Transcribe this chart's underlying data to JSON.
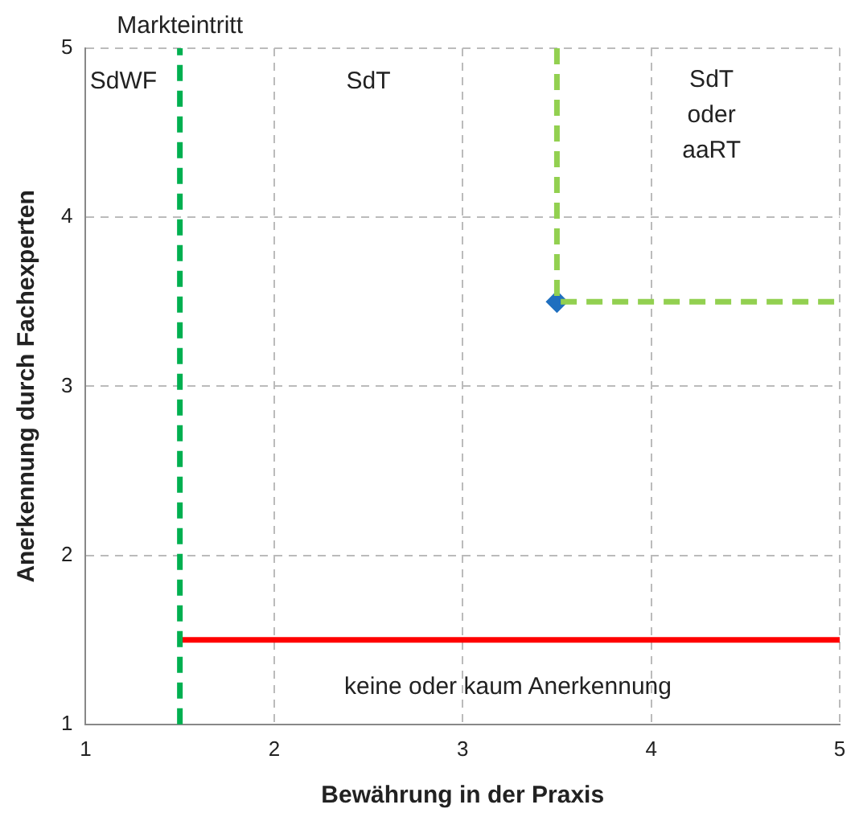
{
  "chart_data": {
    "type": "scatter",
    "xlabel": "Bewährung in der Praxis",
    "ylabel": "Anerkennung durch Fachexperten",
    "xlim": [
      1,
      5
    ],
    "xticks": [
      1,
      2,
      3,
      4,
      5
    ],
    "ylim": [
      1,
      5
    ],
    "yticks": [
      1,
      2,
      3,
      4,
      5
    ],
    "grid": true,
    "legend": false,
    "series": [
      {
        "type": "line",
        "color": "#00b050",
        "x": [
          1.5,
          1.5
        ],
        "values": [
          1,
          5
        ],
        "line_style": "dashed",
        "marker": "none"
      },
      {
        "type": "line",
        "color": "#92d050",
        "x": [
          3.5,
          3.5,
          5
        ],
        "values": [
          5,
          3.5,
          3.5
        ],
        "line_style": "dashed",
        "marker": "none"
      },
      {
        "type": "line",
        "color": "#ff0000",
        "x": [
          1.5,
          5
        ],
        "values": [
          1.5,
          1.5
        ],
        "line_style": "solid",
        "marker": "none"
      },
      {
        "type": "scatter",
        "color": "#1f6fbf",
        "x": [
          3.5
        ],
        "values": [
          3.5
        ],
        "marker": "diamond"
      }
    ],
    "annotations": [
      {
        "text": "Markteintritt",
        "x": 1.5,
        "y": 5
      },
      "SdWF",
      "SdT",
      "SdT\noder\naaRT",
      "keine oder kaum Anerkennung"
    ]
  }
}
